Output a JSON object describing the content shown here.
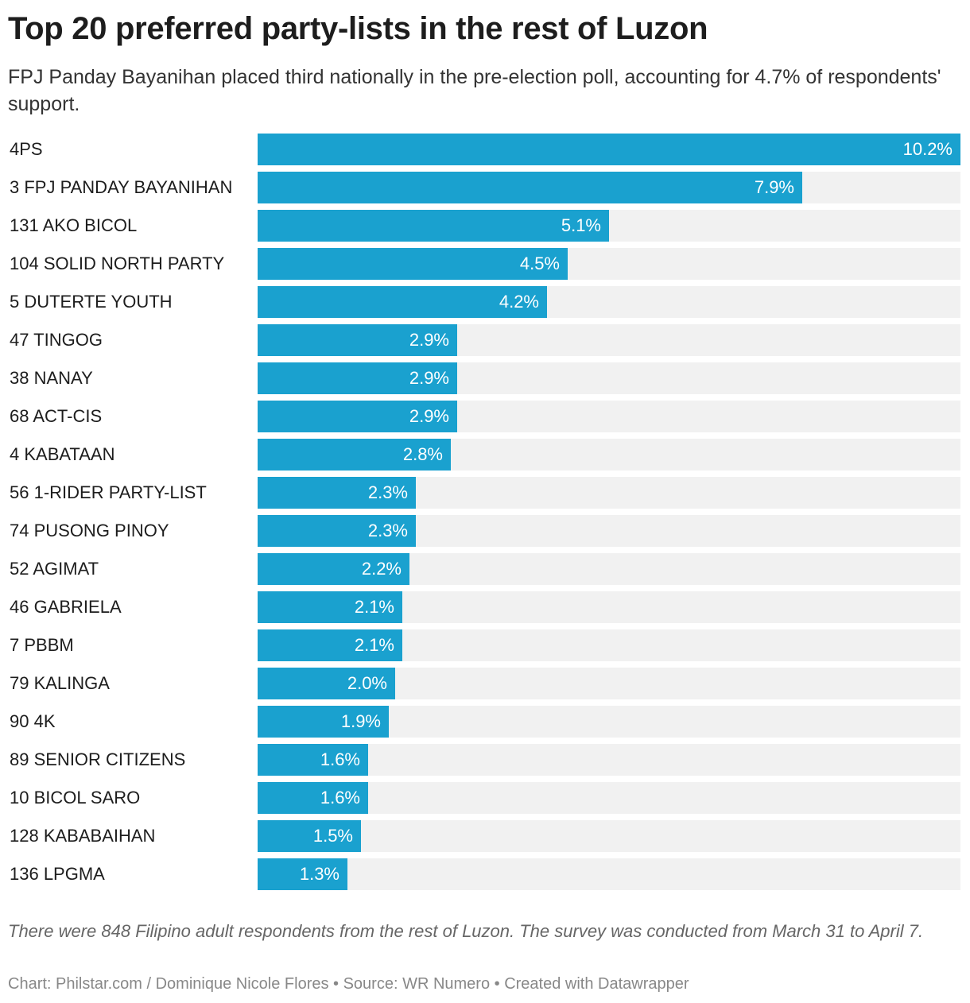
{
  "title": "Top 20 preferred party-lists in the rest of Luzon",
  "subtitle": "FPJ Panday Bayanihan placed third nationally in the pre-election poll, accounting for 4.7% of respondents' support.",
  "notes": "There were 848 Filipino adult respondents from the rest of Luzon. The survey was conducted from March 31 to April 7.",
  "footer": "Chart: Philstar.com / Dominique Nicole Flores • Source: WR Numero • Created with Datawrapper",
  "colors": {
    "bar": "#1aa1cf",
    "track": "#f1f1f1"
  },
  "chart_data": {
    "type": "bar",
    "orientation": "horizontal",
    "title": "Top 20 preferred party-lists in the rest of Luzon",
    "xlabel": "",
    "ylabel": "",
    "xlim": [
      0,
      10.2
    ],
    "unit": "%",
    "categories": [
      "4PS",
      "3 FPJ PANDAY BAYANIHAN",
      "131 AKO BICOL",
      "104 SOLID NORTH PARTY",
      "5 DUTERTE YOUTH",
      "47 TINGOG",
      "38 NANAY",
      "68 ACT-CIS",
      "4 KABATAAN",
      "56 1-RIDER PARTY-LIST",
      "74 PUSONG PINOY",
      "52 AGIMAT",
      "46 GABRIELA",
      "7 PBBM",
      "79 KALINGA",
      "90 4K",
      "89 SENIOR CITIZENS",
      "10 BICOL SARO",
      "128 KABABAIHAN",
      "136 LPGMA"
    ],
    "values": [
      10.2,
      7.9,
      5.1,
      4.5,
      4.2,
      2.9,
      2.9,
      2.9,
      2.8,
      2.3,
      2.3,
      2.2,
      2.1,
      2.1,
      2.0,
      1.9,
      1.6,
      1.6,
      1.5,
      1.3
    ],
    "value_labels": [
      "10.2%",
      "7.9%",
      "5.1%",
      "4.5%",
      "4.2%",
      "2.9%",
      "2.9%",
      "2.9%",
      "2.8%",
      "2.3%",
      "2.3%",
      "2.2%",
      "2.1%",
      "2.1%",
      "2.0%",
      "1.9%",
      "1.6%",
      "1.6%",
      "1.5%",
      "1.3%"
    ]
  }
}
